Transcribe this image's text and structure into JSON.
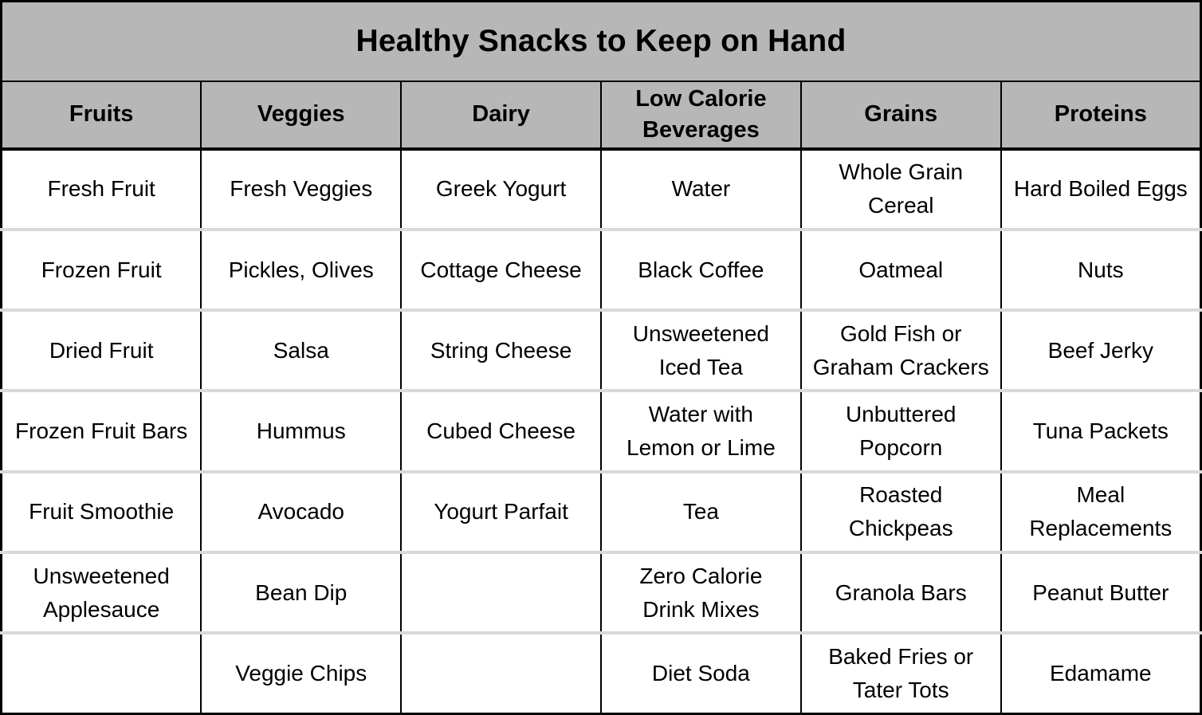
{
  "title": "Healthy Snacks to Keep on Hand",
  "colors": {
    "header_bg": "#b7b7b7",
    "grid_line": "#000000",
    "row_divider": "#d9d9d9",
    "cell_bg": "#ffffff",
    "text": "#000000"
  },
  "table": {
    "headers": [
      "Fruits",
      "Veggies",
      "Dairy",
      "Low Calorie\nBeverages",
      "Grains",
      "Proteins"
    ],
    "rows": [
      [
        "Fresh Fruit",
        "Fresh Veggies",
        "Greek Yogurt",
        "Water",
        "Whole Grain\nCereal",
        "Hard Boiled Eggs"
      ],
      [
        "Frozen Fruit",
        "Pickles, Olives",
        "Cottage Cheese",
        "Black Coffee",
        "Oatmeal",
        "Nuts"
      ],
      [
        "Dried Fruit",
        "Salsa",
        "String Cheese",
        "Unsweetened\nIced Tea",
        "Gold Fish or\nGraham Crackers",
        "Beef Jerky"
      ],
      [
        "Frozen Fruit Bars",
        "Hummus",
        "Cubed Cheese",
        "Water with\nLemon or Lime",
        "Unbuttered\nPopcorn",
        "Tuna Packets"
      ],
      [
        "Fruit Smoothie",
        "Avocado",
        "Yogurt Parfait",
        "Tea",
        "Roasted\nChickpeas",
        "Meal\nReplacements"
      ],
      [
        "Unsweetened\nApplesauce",
        "Bean Dip",
        "",
        "Zero Calorie\nDrink Mixes",
        "Granola Bars",
        "Peanut Butter"
      ],
      [
        "",
        "Veggie Chips",
        "",
        "Diet Soda",
        "Baked Fries or\nTater Tots",
        "Edamame"
      ]
    ]
  }
}
